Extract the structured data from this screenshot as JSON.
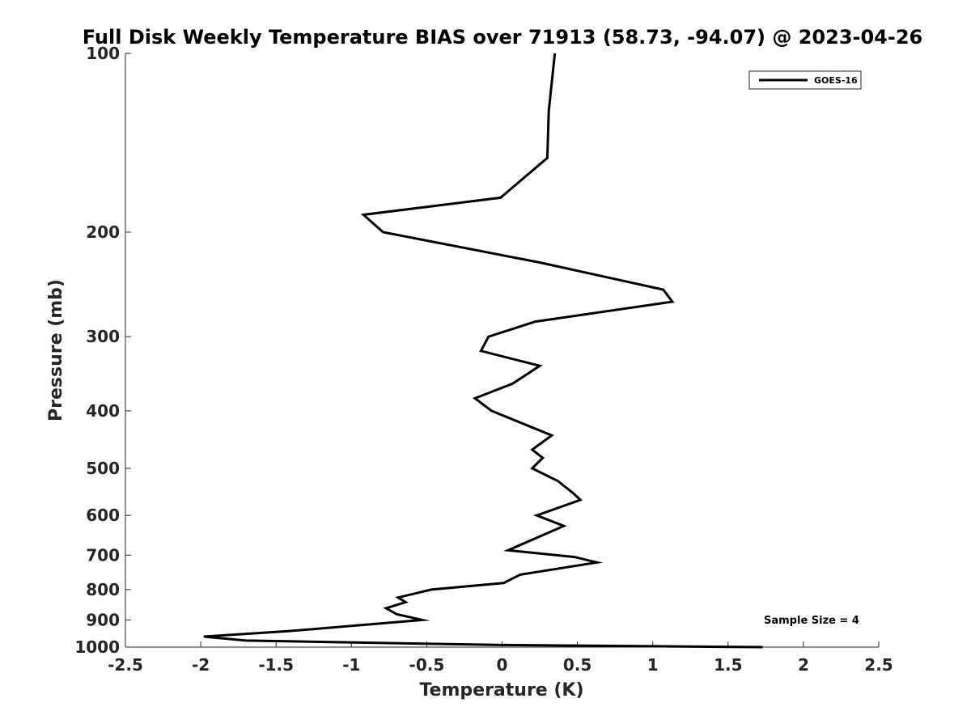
{
  "chart_data": {
    "type": "line",
    "title": "Full Disk Weekly Temperature BIAS over 71913 (58.73, -94.07) @ 2023-04-26",
    "xlabel": "Temperature (K)",
    "ylabel": "Pressure (mb)",
    "xlim": [
      -2.5,
      2.5
    ],
    "ylim": [
      100,
      1000
    ],
    "y_scale": "log",
    "y_reversed": true,
    "grid": false,
    "x_ticks": [
      -2.5,
      -2,
      -1.5,
      -1,
      -0.5,
      0,
      0.5,
      1,
      1.5,
      2,
      2.5
    ],
    "x_tick_labels": [
      "-2.5",
      "-2",
      "-1.5",
      "-1",
      "-0.5",
      "0",
      "0.5",
      "1",
      "1.5",
      "2",
      "2.5"
    ],
    "y_ticks": [
      100,
      200,
      300,
      400,
      500,
      600,
      700,
      800,
      900,
      1000
    ],
    "y_tick_labels": [
      "100",
      "200",
      "300",
      "400",
      "500",
      "600",
      "700",
      "800",
      "900",
      "1000"
    ],
    "legend": {
      "position": "top-right",
      "entries": [
        "GOES-16"
      ]
    },
    "annotation": "Sample Size = 4",
    "series": [
      {
        "name": "GOES-16",
        "color": "#000000",
        "points": [
          {
            "t": 0.35,
            "p": 100
          },
          {
            "t": 0.31,
            "p": 125
          },
          {
            "t": 0.3,
            "p": 150
          },
          {
            "t": -0.01,
            "p": 175
          },
          {
            "t": -0.92,
            "p": 187
          },
          {
            "t": -0.79,
            "p": 200
          },
          {
            "t": 0.25,
            "p": 225
          },
          {
            "t": 1.07,
            "p": 250
          },
          {
            "t": 1.13,
            "p": 262
          },
          {
            "t": 0.22,
            "p": 283
          },
          {
            "t": -0.09,
            "p": 300
          },
          {
            "t": -0.14,
            "p": 317
          },
          {
            "t": 0.25,
            "p": 336
          },
          {
            "t": 0.07,
            "p": 360
          },
          {
            "t": -0.18,
            "p": 381
          },
          {
            "t": -0.07,
            "p": 400
          },
          {
            "t": 0.33,
            "p": 440
          },
          {
            "t": 0.2,
            "p": 465
          },
          {
            "t": 0.27,
            "p": 480
          },
          {
            "t": 0.2,
            "p": 500
          },
          {
            "t": 0.37,
            "p": 525
          },
          {
            "t": 0.47,
            "p": 550
          },
          {
            "t": 0.52,
            "p": 565
          },
          {
            "t": 0.23,
            "p": 600
          },
          {
            "t": 0.41,
            "p": 625
          },
          {
            "t": 0.04,
            "p": 687
          },
          {
            "t": 0.48,
            "p": 705
          },
          {
            "t": 0.63,
            "p": 720
          },
          {
            "t": 0.12,
            "p": 755
          },
          {
            "t": 0.01,
            "p": 780
          },
          {
            "t": -0.47,
            "p": 800
          },
          {
            "t": -0.69,
            "p": 825
          },
          {
            "t": -0.64,
            "p": 840
          },
          {
            "t": -0.77,
            "p": 860
          },
          {
            "t": -0.7,
            "p": 880
          },
          {
            "t": -0.53,
            "p": 900
          },
          {
            "t": -1.42,
            "p": 940
          },
          {
            "t": -1.98,
            "p": 960
          },
          {
            "t": -1.7,
            "p": 975
          },
          {
            "t": 0.0,
            "p": 992
          },
          {
            "t": 1.73,
            "p": 1000
          }
        ]
      }
    ]
  }
}
